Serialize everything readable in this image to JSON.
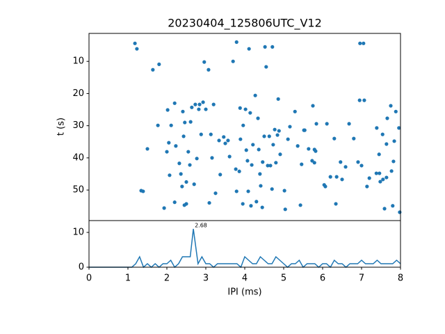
{
  "chart_data": [
    {
      "type": "scatter",
      "title": "20230404_125806UTC_V12",
      "ylabel": "t (s)",
      "color": "#1f77b4",
      "xlim": [
        0,
        8
      ],
      "ylim": [
        1.3,
        59.5
      ],
      "y_inverted": true,
      "yticks": [
        10,
        20,
        30,
        40,
        50
      ],
      "x": [
        1.18,
        1.23,
        1.34,
        1.39,
        1.5,
        1.64,
        1.8,
        1.77,
        1.93,
        2.02,
        2.0,
        2.05,
        2.07,
        2.11,
        2.2,
        2.2,
        2.23,
        2.32,
        2.36,
        2.39,
        2.43,
        2.45,
        2.5,
        2.41,
        2.46,
        2.5,
        2.55,
        2.59,
        2.61,
        2.64,
        2.7,
        2.73,
        2.77,
        2.82,
        2.84,
        2.88,
        2.93,
        2.96,
        3.0,
        3.07,
        3.09,
        3.13,
        3.16,
        3.2,
        3.25,
        3.34,
        3.37,
        3.46,
        3.5,
        3.57,
        3.61,
        3.7,
        3.79,
        3.77,
        3.79,
        3.86,
        3.88,
        3.89,
        3.95,
        3.96,
        4.02,
        4.04,
        4.07,
        4.09,
        4.11,
        4.14,
        4.16,
        4.18,
        4.21,
        4.27,
        4.3,
        4.34,
        4.36,
        4.39,
        4.41,
        4.45,
        4.46,
        4.5,
        4.52,
        4.55,
        4.59,
        4.63,
        4.66,
        4.7,
        4.71,
        4.73,
        4.77,
        4.8,
        4.84,
        4.86,
        4.88,
        4.91,
        5.02,
        5.04,
        5.11,
        5.16,
        5.29,
        5.36,
        5.43,
        5.46,
        5.54,
        5.64,
        5.75,
        5.79,
        5.82,
        5.84,
        5.73,
        5.79,
        6.04,
        6.07,
        6.11,
        6.2,
        6.3,
        6.34,
        6.36,
        6.46,
        6.5,
        6.59,
        6.68,
        6.8,
        6.91,
        6.95,
        6.96,
        7.0,
        7.05,
        7.07,
        7.14,
        7.2,
        7.39,
        7.45,
        7.38,
        7.46,
        7.48,
        7.54,
        7.55,
        7.59,
        7.64,
        7.64,
        7.75,
        7.8,
        7.84,
        7.82,
        7.88,
        7.96,
        7.98,
        7.77,
        7.66,
        5.52
      ],
      "values": [
        4.4,
        6.1,
        50.2,
        50.4,
        37.2,
        12.6,
        10.9,
        29.9,
        55.6,
        25.1,
        38.1,
        35.3,
        45.4,
        29.9,
        23,
        53.8,
        36.3,
        41.7,
        45,
        48.9,
        33.3,
        54.7,
        54.3,
        25.6,
        29,
        47.5,
        38.1,
        42.2,
        28.8,
        24.3,
        48.2,
        23.4,
        40.2,
        24.9,
        23.4,
        32.7,
        22.7,
        10.2,
        24.9,
        12.6,
        54,
        32.7,
        40,
        23.4,
        51,
        34.6,
        45.2,
        33.5,
        35.5,
        34.6,
        39.6,
        10,
        4,
        43.5,
        50.4,
        44.2,
        24.5,
        34.2,
        54.3,
        29.9,
        24.9,
        37.6,
        40.9,
        50.4,
        6.1,
        26,
        54.9,
        42.2,
        35.9,
        20.6,
        53.6,
        27.7,
        37.4,
        45,
        48.7,
        55.4,
        41.3,
        33.3,
        5.5,
        11.7,
        42.4,
        33.3,
        42.4,
        49.7,
        5.5,
        35.9,
        31.2,
        41.5,
        32.9,
        21.7,
        31.6,
        38.9,
        50.2,
        56,
        34.2,
        30.3,
        25.6,
        36.3,
        54.7,
        42,
        31.4,
        37.2,
        23.8,
        37.4,
        37.9,
        29.4,
        40.9,
        41.5,
        48.4,
        48.9,
        29.4,
        45.9,
        34,
        54.3,
        45.9,
        41.3,
        46.7,
        42.8,
        29.4,
        34,
        41.3,
        22.1,
        4.4,
        42.4,
        4.4,
        22.1,
        48.9,
        46.3,
        30.7,
        38.9,
        44.8,
        44.8,
        47.4,
        32.7,
        46.7,
        55.8,
        35.7,
        46.1,
        23.8,
        54.9,
        34.8,
        41.1,
        25.6,
        30.7,
        56.9,
        44.1,
        27.7,
        31.4
      ]
    },
    {
      "type": "line",
      "xlabel": "IPI (ms)",
      "color": "#1f77b4",
      "annotation": "2.68",
      "xlim": [
        0,
        8
      ],
      "xticks": [
        0,
        1,
        2,
        3,
        4,
        5,
        6,
        7,
        8
      ],
      "ylim": [
        0,
        13.4
      ],
      "yticks": [
        0,
        10
      ],
      "x": [
        0,
        0.1,
        0.2,
        0.3,
        0.4,
        0.5,
        0.6,
        0.7,
        0.8,
        0.9,
        1.0,
        1.1,
        1.2,
        1.3,
        1.4,
        1.5,
        1.6,
        1.7,
        1.8,
        1.9,
        2.0,
        2.1,
        2.2,
        2.3,
        2.4,
        2.5,
        2.6,
        2.68,
        2.8,
        2.9,
        3.0,
        3.1,
        3.2,
        3.3,
        3.4,
        3.5,
        3.6,
        3.7,
        3.8,
        3.9,
        4.0,
        4.1,
        4.2,
        4.3,
        4.4,
        4.5,
        4.6,
        4.7,
        4.8,
        4.9,
        5.0,
        5.1,
        5.2,
        5.3,
        5.4,
        5.5,
        5.6,
        5.7,
        5.8,
        5.9,
        6.0,
        6.1,
        6.2,
        6.3,
        6.4,
        6.5,
        6.6,
        6.7,
        6.8,
        6.9,
        7.0,
        7.1,
        7.2,
        7.3,
        7.4,
        7.5,
        7.6,
        7.7,
        7.8,
        7.9,
        8.0
      ],
      "values": [
        0,
        0,
        0,
        0,
        0,
        0,
        0,
        0,
        0,
        0,
        0,
        0,
        1,
        3,
        0,
        1,
        0,
        1,
        0,
        1,
        1,
        2,
        0,
        1,
        3,
        3,
        3,
        11,
        1,
        3,
        1,
        1,
        0,
        1,
        1,
        1,
        1,
        1,
        1,
        0,
        3,
        2,
        1,
        1,
        3,
        2,
        1,
        1,
        3,
        2,
        1,
        0,
        1,
        1,
        2,
        0,
        1,
        1,
        1,
        0,
        1,
        1,
        0,
        2,
        1,
        1,
        0,
        1,
        1,
        1,
        2,
        1,
        1,
        1,
        2,
        1,
        1,
        1,
        1,
        2,
        1
      ]
    }
  ]
}
